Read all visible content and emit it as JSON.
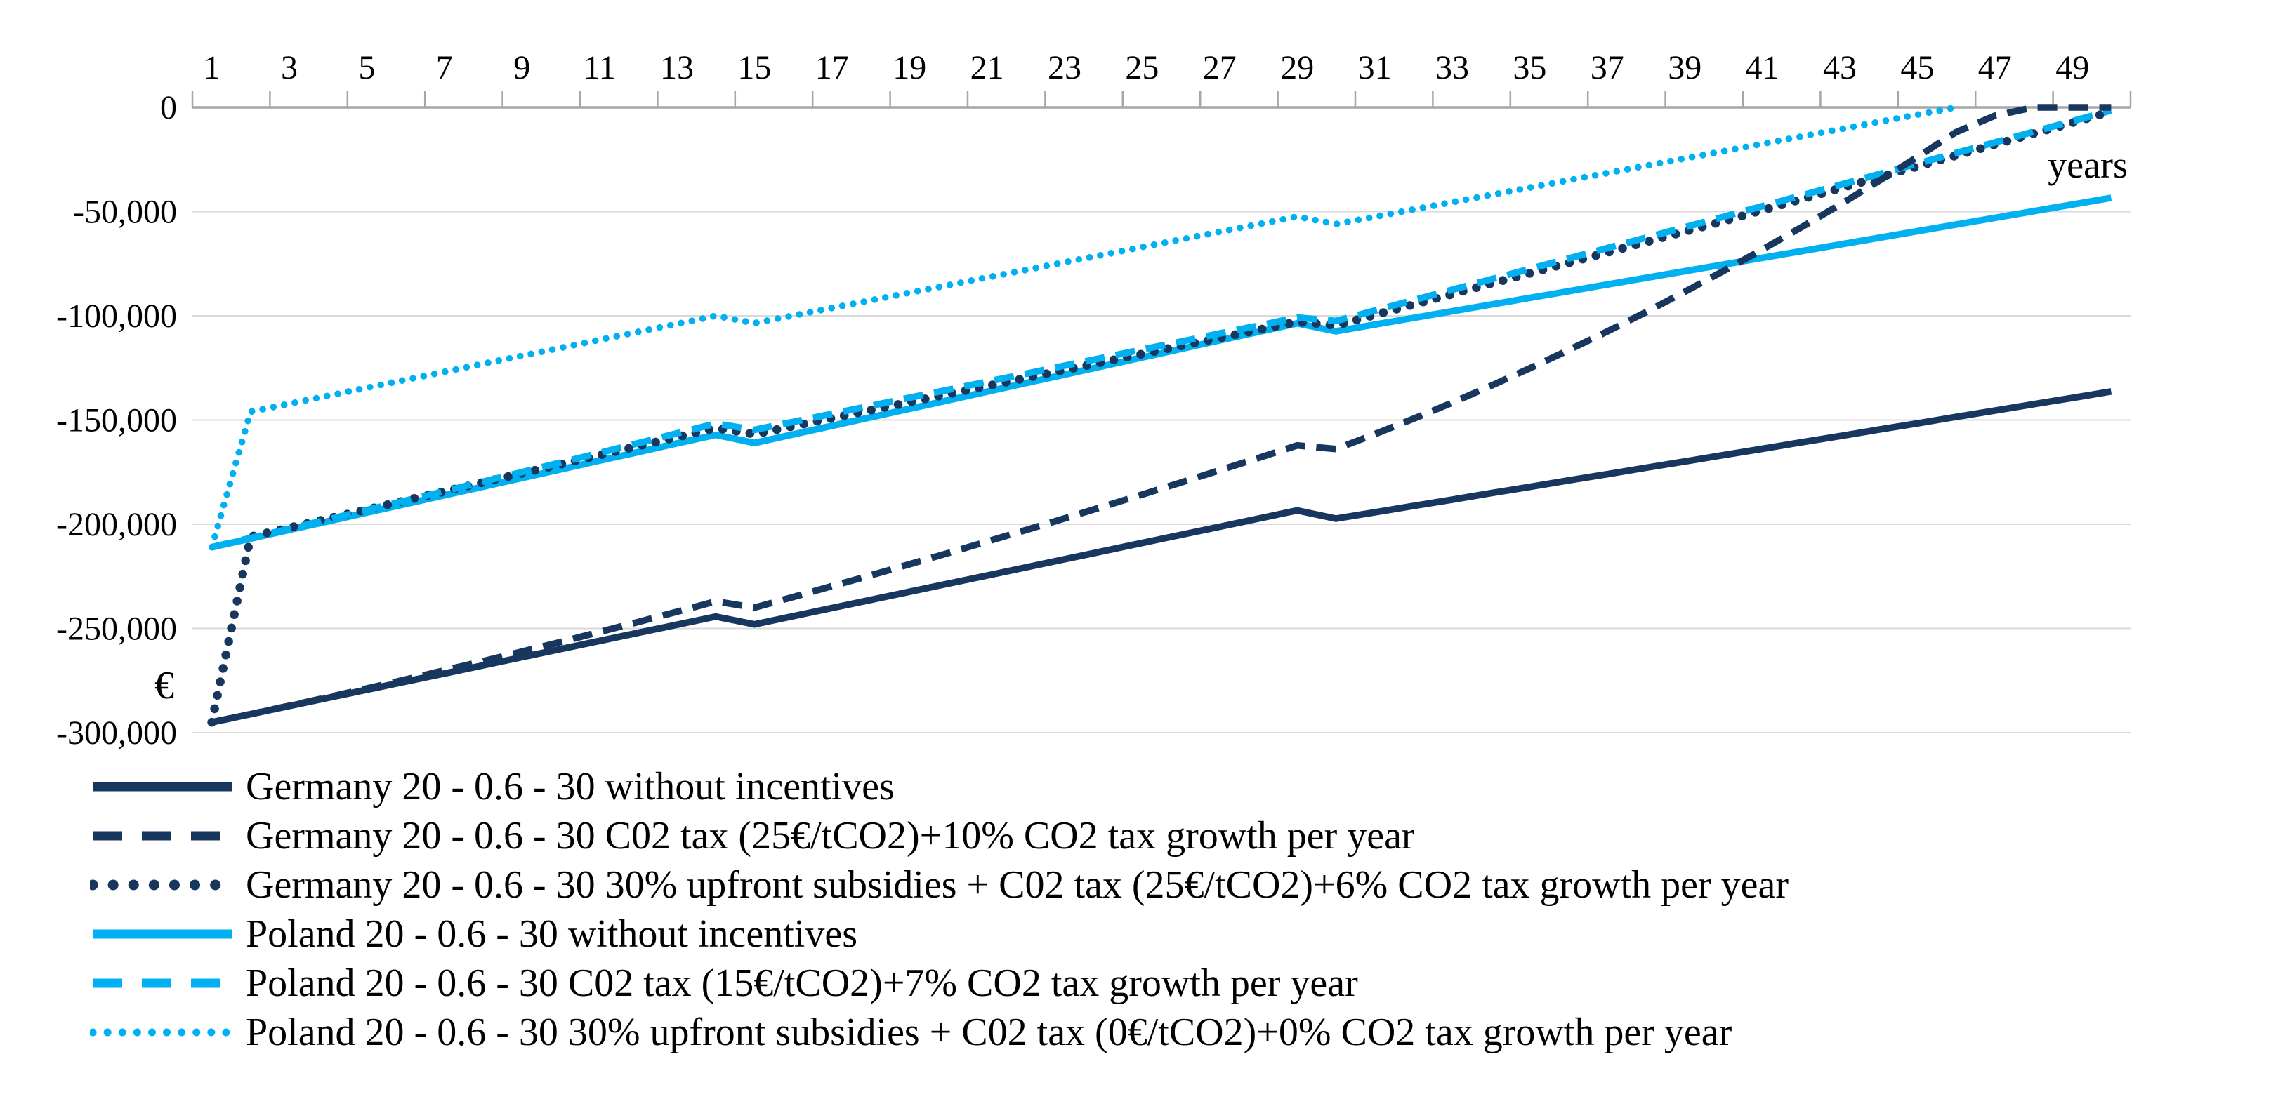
{
  "chart_data": {
    "type": "line",
    "title": "",
    "xlabel": "years",
    "ylabel": "€",
    "x_axis_position": "top",
    "grid": "horizontal",
    "legend_position": "bottom-left",
    "xlim": [
      0,
      50
    ],
    "ylim": [
      -300000,
      0
    ],
    "x": [
      1,
      2,
      3,
      4,
      5,
      6,
      7,
      8,
      9,
      10,
      11,
      12,
      13,
      14,
      15,
      16,
      17,
      18,
      19,
      20,
      21,
      22,
      23,
      24,
      25,
      26,
      27,
      28,
      29,
      30,
      31,
      32,
      33,
      34,
      35,
      36,
      37,
      38,
      39,
      40,
      41,
      42,
      43,
      44,
      45,
      46,
      47,
      48,
      49,
      50
    ],
    "x_tick_labels": [
      "1",
      "3",
      "5",
      "7",
      "9",
      "11",
      "13",
      "15",
      "17",
      "19",
      "21",
      "23",
      "25",
      "27",
      "29",
      "31",
      "33",
      "35",
      "37",
      "39",
      "41",
      "43",
      "45",
      "47",
      "49"
    ],
    "x_tick_years": [
      1,
      3,
      5,
      7,
      9,
      11,
      13,
      15,
      17,
      19,
      21,
      23,
      25,
      27,
      29,
      31,
      33,
      35,
      37,
      39,
      41,
      43,
      45,
      47,
      49
    ],
    "y_ticks": [
      0,
      -50000,
      -100000,
      -150000,
      -200000,
      -250000,
      -300000
    ],
    "y_tick_labels": [
      "0",
      "-50,000",
      "-100,000",
      "-150,000",
      "-200,000",
      "-250,000",
      "-300,000"
    ],
    "colors": {
      "germany": "#17375E",
      "poland": "#00B0F0"
    },
    "series": [
      {
        "name": "Germany 20 - 0.6 - 30 without incentives",
        "color": "#17375E",
        "style": "solid",
        "values": [
          -295000,
          -291100,
          -287200,
          -283300,
          -279400,
          -275500,
          -271600,
          -267700,
          -263800,
          -259900,
          -256000,
          -252100,
          -248200,
          -244300,
          -248000,
          -244100,
          -240200,
          -236300,
          -232400,
          -228500,
          -224600,
          -220700,
          -216800,
          -212900,
          -209000,
          -205100,
          -201200,
          -197300,
          -193400,
          -197300,
          -194300,
          -191200,
          -188200,
          -185100,
          -182100,
          -179000,
          -176000,
          -172900,
          -169900,
          -166800,
          -163800,
          -160700,
          -157700,
          -154600,
          -151600,
          -148500,
          -145500,
          -142400,
          -139400,
          -136300
        ]
      },
      {
        "name": "Germany 20 - 0.6 - 30 C02 tax (25€/tCO2)+10% CO2 tax growth per year",
        "color": "#17375E",
        "style": "dashed",
        "values": [
          -295000,
          -291100,
          -287100,
          -283000,
          -278800,
          -274500,
          -270100,
          -265700,
          -261100,
          -256500,
          -251700,
          -246900,
          -242000,
          -237000,
          -240000,
          -234900,
          -229700,
          -224500,
          -219200,
          -213800,
          -208300,
          -202800,
          -197200,
          -191500,
          -185800,
          -180000,
          -174100,
          -168200,
          -162200,
          -163900,
          -156800,
          -149400,
          -141700,
          -133600,
          -125200,
          -116500,
          -107500,
          -98200,
          -88500,
          -78500,
          -68200,
          -57600,
          -46700,
          -35400,
          -23800,
          -11900,
          -4000,
          0,
          0,
          0
        ]
      },
      {
        "name": "Germany 20 - 0.6 - 30 30% upfront subsidies + C02 tax (25€/tCO2)+6% CO2 tax growth per year",
        "color": "#17375E",
        "style": "dotted",
        "values": [
          -295000,
          -206000,
          -201700,
          -197300,
          -193000,
          -188600,
          -184300,
          -179900,
          -175600,
          -171200,
          -166900,
          -162500,
          -158200,
          -153800,
          -156800,
          -152950,
          -149100,
          -145250,
          -141400,
          -137550,
          -133700,
          -129850,
          -126000,
          -122150,
          -118300,
          -114450,
          -110600,
          -106750,
          -102900,
          -104600,
          -99600,
          -94600,
          -89600,
          -84600,
          -79600,
          -74600,
          -69600,
          -64600,
          -59600,
          -54600,
          -49350,
          -44100,
          -38850,
          -33600,
          -28350,
          -23100,
          -17850,
          -12600,
          -7350,
          -2100
        ]
      },
      {
        "name": "Poland 20 - 0.6 - 30 without incentives",
        "color": "#00B0F0",
        "style": "solid",
        "values": [
          -211000,
          -206900,
          -202700,
          -198600,
          -194400,
          -190300,
          -186100,
          -182000,
          -177800,
          -173700,
          -169500,
          -165400,
          -161200,
          -157100,
          -161000,
          -156900,
          -152800,
          -148700,
          -144600,
          -140500,
          -136400,
          -132300,
          -128200,
          -124100,
          -120000,
          -115900,
          -111800,
          -107700,
          -103600,
          -107400,
          -104200,
          -101000,
          -97800,
          -94600,
          -91400,
          -88200,
          -85000,
          -81800,
          -78600,
          -75400,
          -72200,
          -69000,
          -65800,
          -62600,
          -59400,
          -56200,
          -53000,
          -49800,
          -46600,
          -43400
        ]
      },
      {
        "name": "Poland 20 - 0.6 - 30 C02 tax (15€/tCO2)+7% CO2 tax growth per year",
        "color": "#00B0F0",
        "style": "dashed",
        "values": [
          -211000,
          -206600,
          -202200,
          -197700,
          -193200,
          -188700,
          -184200,
          -179600,
          -175000,
          -170400,
          -165800,
          -161100,
          -156400,
          -151700,
          -154700,
          -150900,
          -147000,
          -143200,
          -139300,
          -135500,
          -131600,
          -127800,
          -123900,
          -120100,
          -116200,
          -112400,
          -108500,
          -104700,
          -100800,
          -102500,
          -97500,
          -92500,
          -87500,
          -82500,
          -77500,
          -72500,
          -67500,
          -62500,
          -57500,
          -52500,
          -47400,
          -42300,
          -37200,
          -32100,
          -27000,
          -21900,
          -16800,
          -11700,
          -6600,
          -1500
        ]
      },
      {
        "name": "Poland 20 - 0.6 - 30 30% upfront subsidies + C02 tax (0€/tCO2)+0% CO2 tax growth per year",
        "color": "#00B0F0",
        "style": "dotted",
        "values": [
          -211000,
          -146000,
          -142200,
          -138400,
          -134500,
          -130700,
          -126900,
          -123000,
          -119200,
          -115400,
          -111500,
          -107700,
          -103900,
          -100000,
          -103500,
          -99900,
          -96200,
          -92600,
          -88900,
          -85300,
          -81600,
          -78000,
          -74300,
          -70700,
          -67000,
          -63400,
          -59700,
          -56100,
          -52400,
          -56000,
          -52500,
          -49000,
          -45500,
          -42000,
          -38500,
          -35000,
          -31500,
          -28000,
          -24500,
          -21000,
          -17500,
          -14000,
          -10500,
          -7000,
          -3500,
          0,
          null,
          null,
          null,
          null
        ]
      }
    ],
    "axis_colors": {
      "axis_line": "#A6A6A6",
      "gridline": "#D9D9D9",
      "text": "#000000"
    }
  }
}
